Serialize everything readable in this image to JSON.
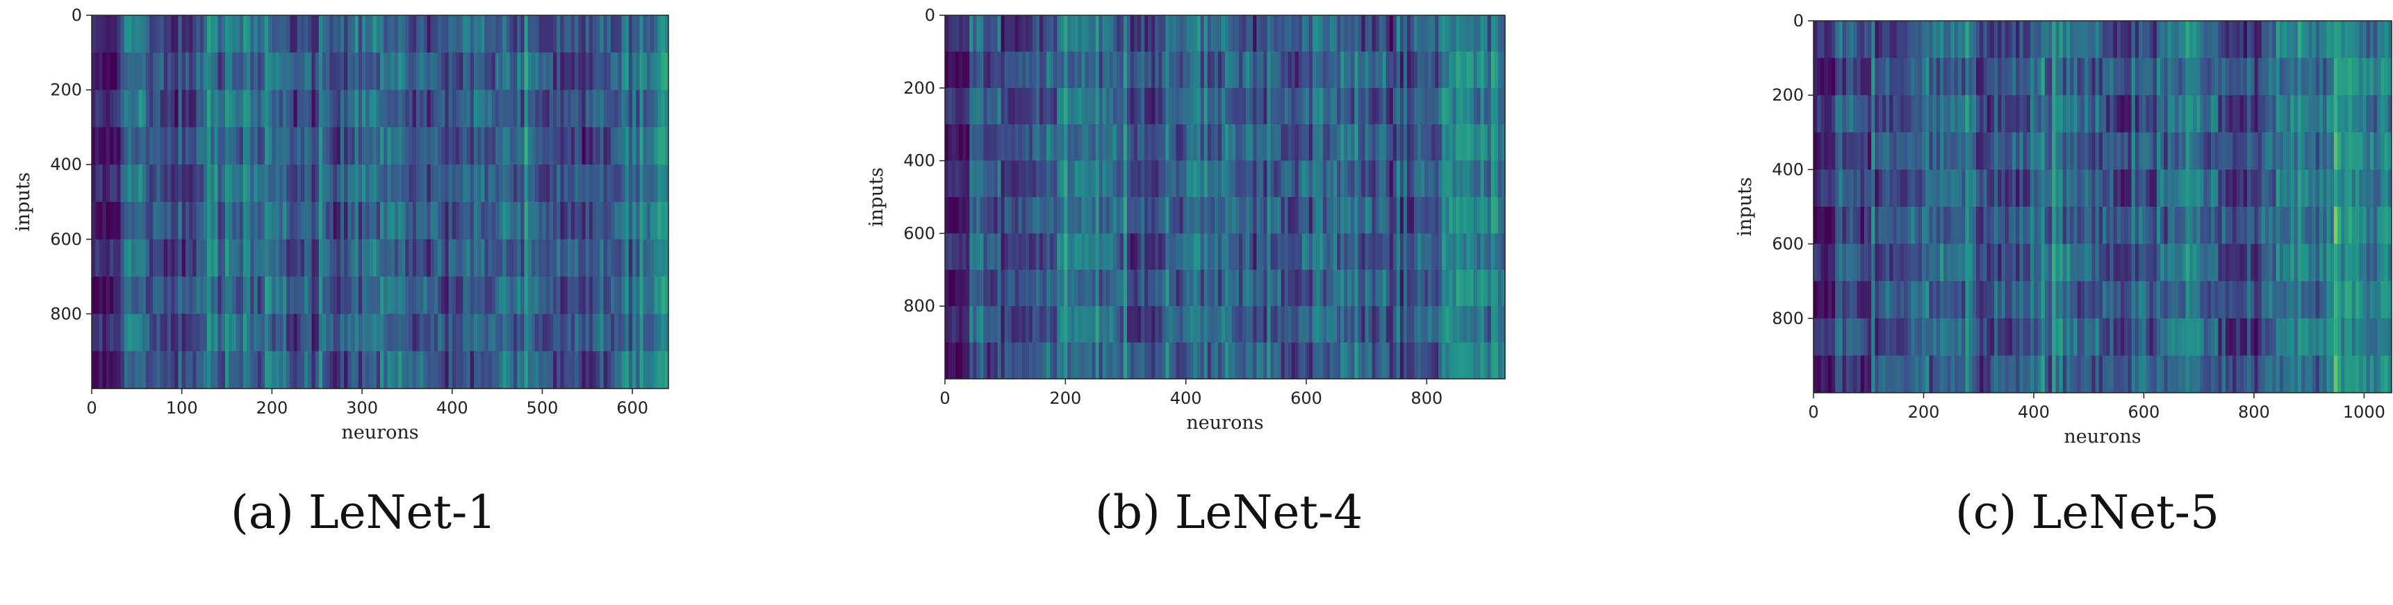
{
  "chart_data": [
    {
      "type": "heatmap",
      "caption": "(a) LeNet-1",
      "xlabel": "neurons",
      "ylabel": "inputs",
      "xlim": [
        0,
        640
      ],
      "ylim": [
        1000,
        0
      ],
      "xticks": [
        0,
        100,
        200,
        300,
        400,
        500,
        600
      ],
      "yticks": [
        0,
        200,
        400,
        600,
        800
      ],
      "colormap": "viridis",
      "grid": false,
      "description_values": {
        "row_blocks": 10,
        "rows_per_block": 100,
        "bright_columns_range": [
          620,
          635
        ],
        "dark_columns_range": [
          0,
          30
        ]
      }
    },
    {
      "type": "heatmap",
      "caption": "(b) LeNet-4",
      "xlabel": "neurons",
      "ylabel": "inputs",
      "xlim": [
        0,
        930
      ],
      "ylim": [
        1000,
        0
      ],
      "xticks": [
        0,
        200,
        400,
        600,
        800
      ],
      "yticks": [
        0,
        200,
        400,
        600,
        800
      ],
      "colormap": "viridis",
      "grid": false,
      "description_values": {
        "row_blocks": 10,
        "rows_per_block": 100,
        "bright_columns_range": [
          820,
          930
        ],
        "dark_columns_range": [
          0,
          40
        ]
      }
    },
    {
      "type": "heatmap",
      "caption": "(c) LeNet-5",
      "xlabel": "neurons",
      "ylabel": "inputs",
      "xlim": [
        0,
        1050
      ],
      "ylim": [
        1000,
        0
      ],
      "xticks": [
        0,
        200,
        400,
        600,
        800,
        1000
      ],
      "yticks": [
        0,
        200,
        400,
        600,
        800
      ],
      "colormap": "viridis",
      "grid": false,
      "description_values": {
        "row_blocks": 10,
        "rows_per_block": 100,
        "bright_columns_range": [
          820,
          1050
        ],
        "dark_columns_range": [
          0,
          40
        ]
      }
    }
  ],
  "colors": {
    "dark": "#440154",
    "mid": "#3b528b",
    "teal": "#21918c",
    "bright": "#35b779"
  }
}
